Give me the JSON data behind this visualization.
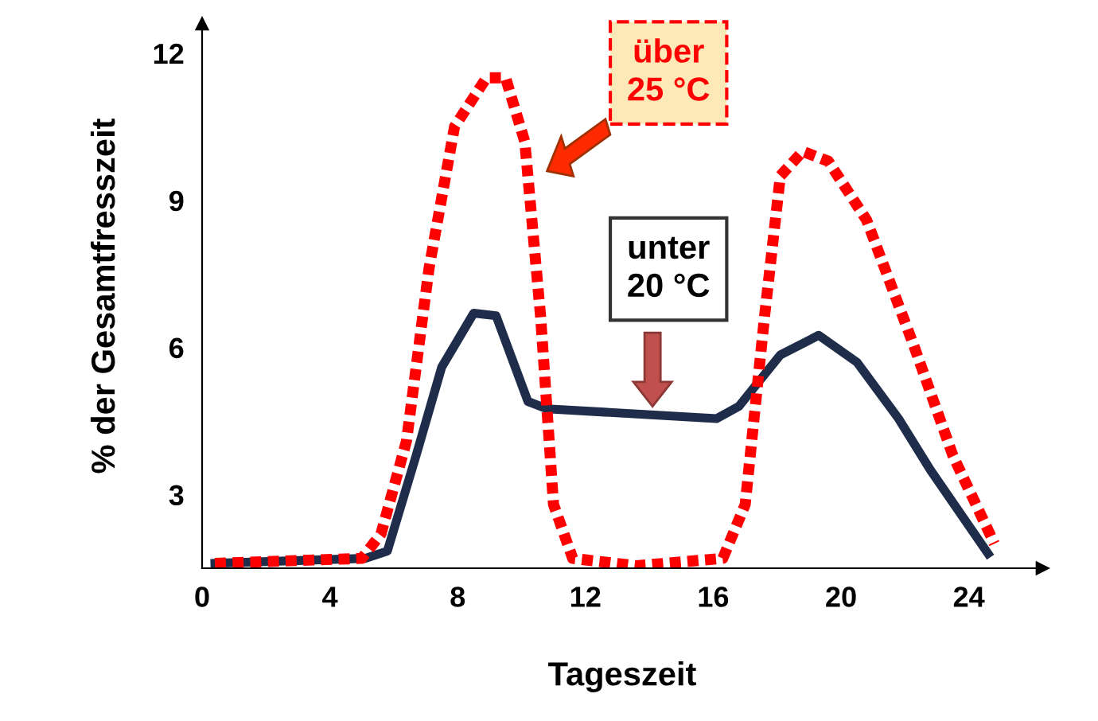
{
  "chart_data": {
    "type": "line",
    "xlabel": "Tageszeit",
    "ylabel": "% der Gesamtfresszeit",
    "xlim": [
      0,
      26.3
    ],
    "ylim": [
      1.5,
      12.6
    ],
    "xticks": [
      0,
      4,
      8,
      12,
      16,
      20,
      24
    ],
    "yticks": [
      3,
      6,
      9,
      12
    ],
    "grid": false,
    "legend": false,
    "marker": "none",
    "series": [
      {
        "color": "#1f2d4a",
        "line_style": "solid",
        "x": [
          0.4,
          5.1,
          5.8,
          6.7,
          7.5,
          8.5,
          9.2,
          10.2,
          10.8,
          16.1,
          16.8,
          18.1,
          19.3,
          20.5,
          21.8,
          22.8,
          24.6
        ],
        "values": [
          1.6,
          1.7,
          1.85,
          3.8,
          5.6,
          6.7,
          6.65,
          4.9,
          4.75,
          4.55,
          4.8,
          5.85,
          6.25,
          5.7,
          4.55,
          3.5,
          1.8
        ]
      },
      {
        "color": "#ff0000",
        "line_style": "dotted",
        "x": [
          0.4,
          5.0,
          5.6,
          6.4,
          7.1,
          7.9,
          8.9,
          9.5,
          10.1,
          10.6,
          11.0,
          11.6,
          13.6,
          16.3,
          17.0,
          17.6,
          18.1,
          18.8,
          19.6,
          20.8,
          22.3,
          23.5,
          24.8
        ],
        "values": [
          1.6,
          1.7,
          2.2,
          4.1,
          7.6,
          10.5,
          11.5,
          11.5,
          10.2,
          6.6,
          2.8,
          1.7,
          1.55,
          1.7,
          2.8,
          6.6,
          9.5,
          10.0,
          9.8,
          8.6,
          6.0,
          3.8,
          2.0
        ]
      }
    ],
    "annotations": [
      "über\n25 °C",
      "unter\n20 °C"
    ]
  }
}
